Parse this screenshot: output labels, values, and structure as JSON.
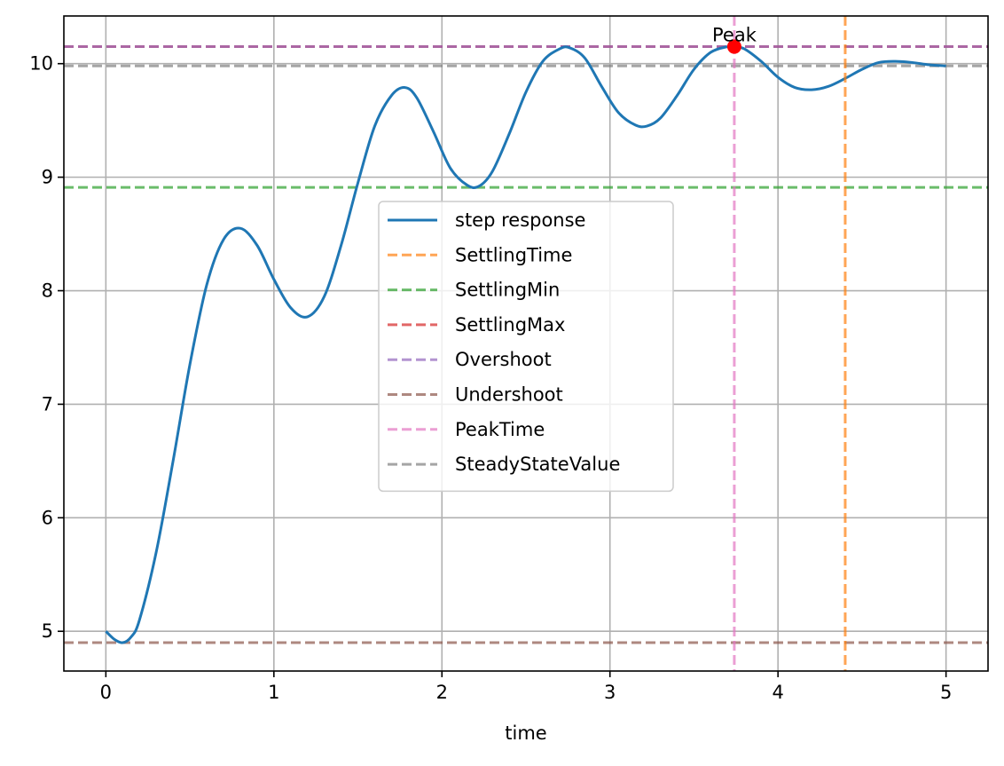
{
  "chart_data": {
    "type": "line",
    "title": "",
    "xlabel": "time",
    "ylabel": "",
    "xlim": [
      -0.25,
      5.25
    ],
    "ylim": [
      4.65,
      10.42
    ],
    "xticks": [
      0,
      1,
      2,
      3,
      4,
      5
    ],
    "xtick_labels": [
      "0",
      "1",
      "2",
      "3",
      "4",
      "5"
    ],
    "yticks": [
      5,
      6,
      7,
      8,
      9,
      10
    ],
    "ytick_labels": [
      "5",
      "6",
      "7",
      "8",
      "9",
      "10"
    ],
    "grid": true,
    "legend_placement": "center",
    "series": [
      {
        "name": "step response",
        "color": "#1f77b4",
        "style": "solid",
        "x": [
          0,
          0.05,
          0.1,
          0.15,
          0.2,
          0.3,
          0.4,
          0.5,
          0.6,
          0.7,
          0.8,
          0.9,
          1.0,
          1.1,
          1.2,
          1.3,
          1.4,
          1.5,
          1.6,
          1.7,
          1.78,
          1.85,
          1.95,
          2.05,
          2.15,
          2.22,
          2.3,
          2.4,
          2.5,
          2.6,
          2.7,
          2.76,
          2.85,
          2.95,
          3.05,
          3.15,
          3.22,
          3.3,
          3.4,
          3.5,
          3.6,
          3.7,
          3.74,
          3.8,
          3.9,
          4.0,
          4.1,
          4.2,
          4.3,
          4.4,
          4.5,
          4.6,
          4.7,
          4.8,
          4.9,
          5.0
        ],
        "y": [
          5.0,
          4.93,
          4.9,
          4.95,
          5.1,
          5.7,
          6.5,
          7.35,
          8.05,
          8.45,
          8.55,
          8.4,
          8.1,
          7.85,
          7.77,
          7.95,
          8.4,
          8.95,
          9.45,
          9.72,
          9.79,
          9.7,
          9.4,
          9.08,
          8.93,
          8.92,
          9.05,
          9.38,
          9.75,
          10.02,
          10.13,
          10.14,
          10.05,
          9.8,
          9.57,
          9.46,
          9.45,
          9.52,
          9.72,
          9.95,
          10.1,
          10.15,
          10.15,
          10.13,
          10.02,
          9.88,
          9.79,
          9.77,
          9.8,
          9.87,
          9.95,
          10.01,
          10.02,
          10.01,
          9.99,
          9.98
        ]
      },
      {
        "name": "SettlingTime",
        "color": "#ff7f0e",
        "orientation": "vertical",
        "value": 4.4
      },
      {
        "name": "SettlingMin",
        "color": "#2ca02c",
        "orientation": "horizontal",
        "value": 8.91
      },
      {
        "name": "SettlingMax",
        "color": "#d62728",
        "orientation": "horizontal",
        "value": 10.15
      },
      {
        "name": "Overshoot",
        "color": "#9467bd",
        "orientation": "horizontal",
        "value": 10.15
      },
      {
        "name": "Undershoot",
        "color": "#8c564b",
        "orientation": "horizontal",
        "value": 4.9
      },
      {
        "name": "PeakTime",
        "color": "#e377c2",
        "orientation": "vertical",
        "value": 3.74
      },
      {
        "name": "SteadyStateValue",
        "color": "#7f7f7f",
        "orientation": "horizontal",
        "value": 9.98
      }
    ],
    "annotations": [
      {
        "text": "Peak",
        "x": 3.74,
        "y": 10.15,
        "marker_color": "#ff0000"
      }
    ]
  }
}
